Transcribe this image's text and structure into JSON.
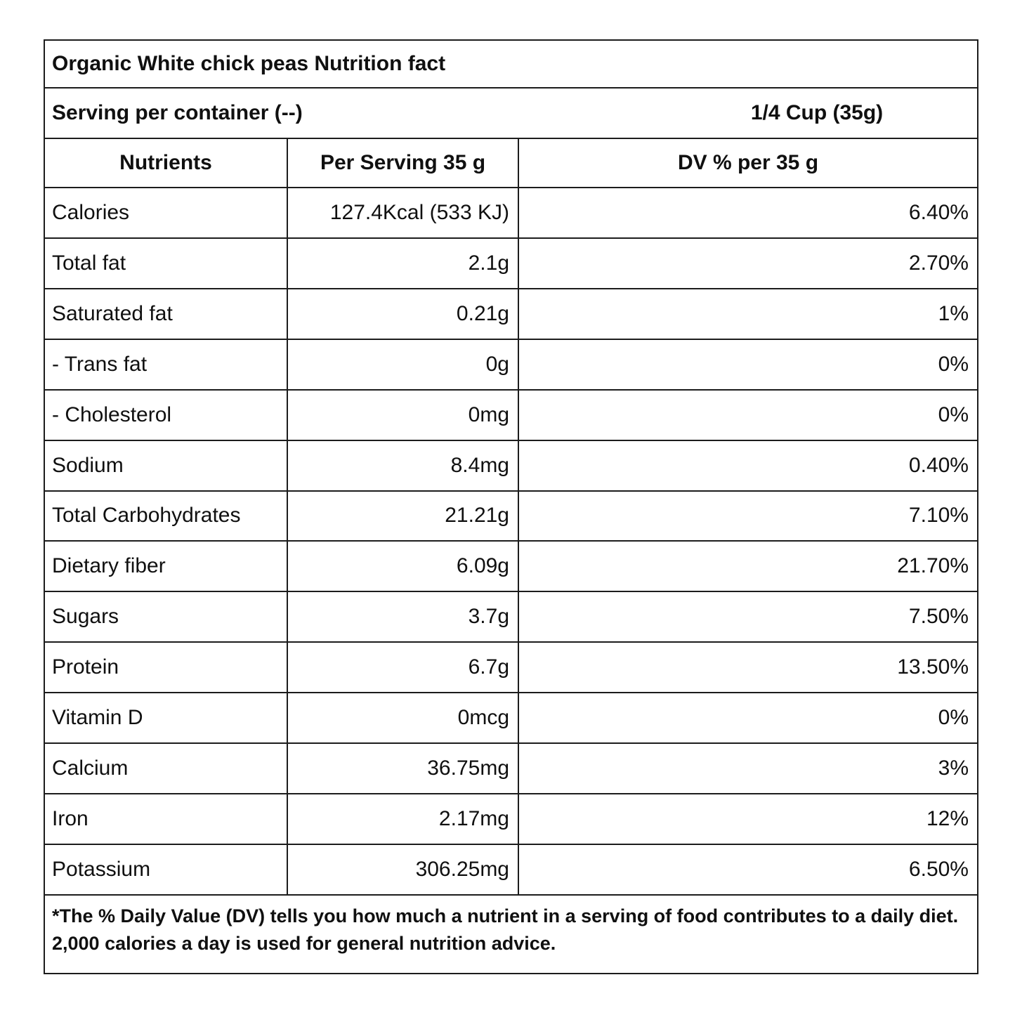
{
  "colors": {
    "border": "#1c1c1c",
    "text": "#101010",
    "background": "#ffffff"
  },
  "table": {
    "title": "Organic White chick peas Nutrition fact",
    "serving": {
      "label": "Serving per container (--)",
      "value": "1/4 Cup (35g)"
    },
    "columns": [
      "Nutrients",
      "Per Serving 35 g",
      "DV % per 35 g"
    ],
    "rows": [
      {
        "nutrient": "Calories",
        "per_serving": "127.4Kcal (533 KJ)",
        "dv": "6.40%"
      },
      {
        "nutrient": "Total fat",
        "per_serving": "2.1g",
        "dv": "2.70%"
      },
      {
        "nutrient": "Saturated fat",
        "per_serving": "0.21g",
        "dv": "1%"
      },
      {
        "nutrient": "- Trans fat",
        "per_serving": "0g",
        "dv": "0%"
      },
      {
        "nutrient": "- Cholesterol",
        "per_serving": "0mg",
        "dv": "0%"
      },
      {
        "nutrient": "Sodium",
        "per_serving": "8.4mg",
        "dv": "0.40%"
      },
      {
        "nutrient": "Total Carbohydrates",
        "per_serving": "21.21g",
        "dv": "7.10%"
      },
      {
        "nutrient": "Dietary fiber",
        "per_serving": "6.09g",
        "dv": "21.70%"
      },
      {
        "nutrient": "Sugars",
        "per_serving": "3.7g",
        "dv": "7.50%"
      },
      {
        "nutrient": "Protein",
        "per_serving": "6.7g",
        "dv": "13.50%"
      },
      {
        "nutrient": "Vitamin D",
        "per_serving": "0mcg",
        "dv": "0%"
      },
      {
        "nutrient": "Calcium",
        "per_serving": "36.75mg",
        "dv": "3%"
      },
      {
        "nutrient": "Iron",
        "per_serving": "2.17mg",
        "dv": "12%"
      },
      {
        "nutrient": "Potassium",
        "per_serving": "306.25mg",
        "dv": "6.50%"
      }
    ],
    "footnote": "*The % Daily Value (DV) tells you how much a nutrient in a serving of food contributes to a daily diet. 2,000 calories a day is used for general nutrition advice."
  }
}
